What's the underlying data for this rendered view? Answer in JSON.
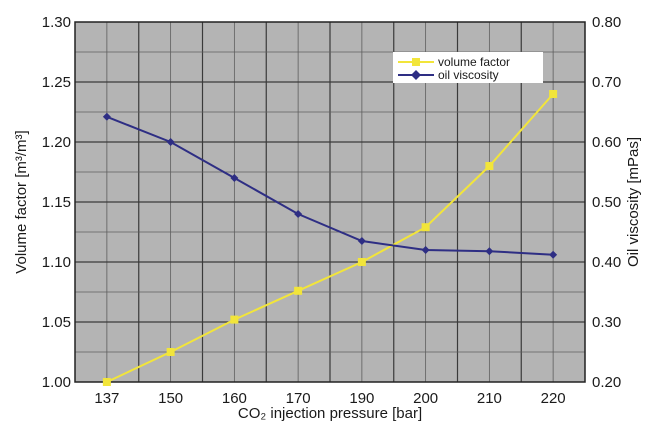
{
  "chart_data": {
    "type": "line",
    "categories": [
      "137",
      "150",
      "160",
      "170",
      "190",
      "200",
      "210",
      "220"
    ],
    "series": [
      {
        "name": "volume factor",
        "axis": "left",
        "color": "#f2e53a",
        "marker": "square",
        "values": [
          1.0,
          1.025,
          1.052,
          1.076,
          1.1,
          1.129,
          1.18,
          1.24
        ]
      },
      {
        "name": "oil viscosity",
        "axis": "right",
        "color": "#2e2e84",
        "marker": "diamond",
        "values": [
          0.642,
          0.6,
          0.54,
          0.48,
          0.435,
          0.42,
          0.418,
          0.412
        ]
      }
    ],
    "xlabel": "CO₂ injection pressure [bar]",
    "ylabel_left": "Volume factor [m³/m³]",
    "ylabel_right": "Oil viscosity [mPas]",
    "ylim_left": [
      1.0,
      1.3
    ],
    "ylim_right": [
      0.2,
      0.8
    ],
    "yticks_left": [
      "1.00",
      "1.05",
      "1.10",
      "1.15",
      "1.20",
      "1.25",
      "1.30"
    ],
    "yticks_right": [
      "0.20",
      "0.30",
      "0.40",
      "0.50",
      "0.60",
      "0.70",
      "0.80"
    ],
    "grid": true,
    "plot_background": "#b4b4b4",
    "legend_position": "top-right"
  }
}
